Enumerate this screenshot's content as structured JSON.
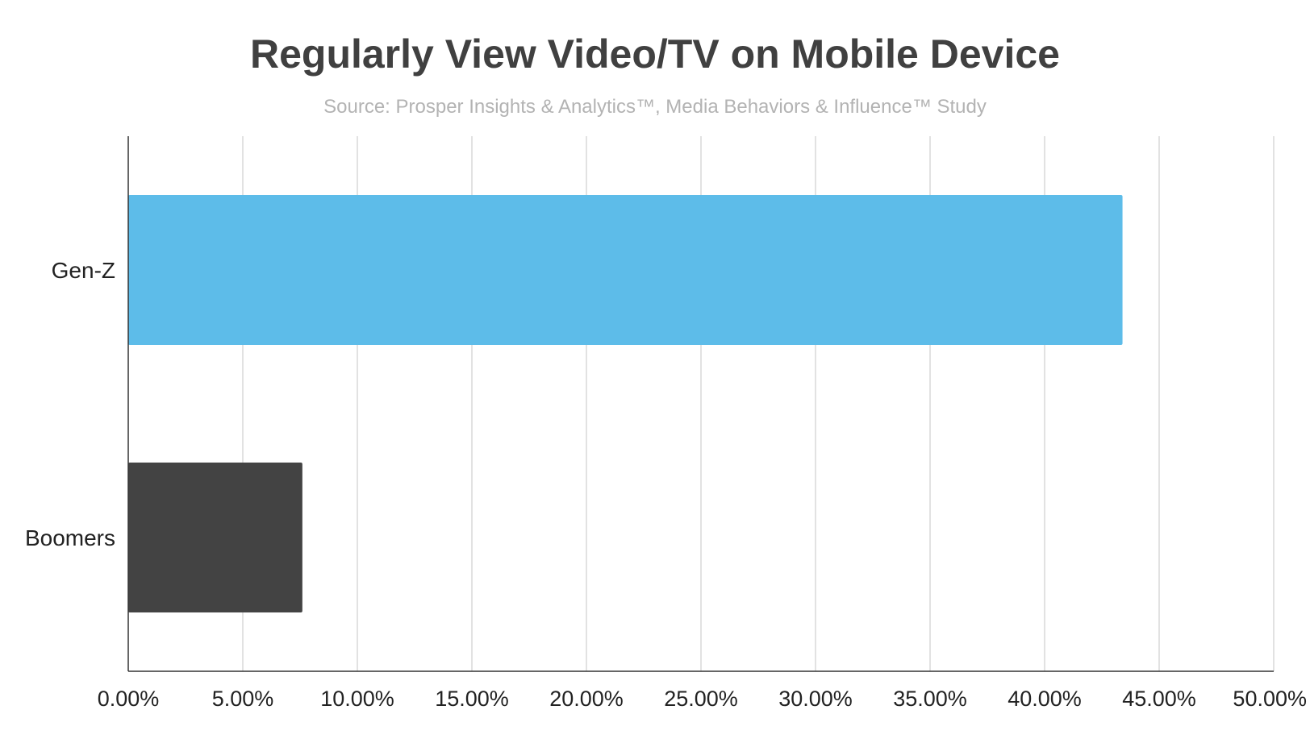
{
  "chart_data": {
    "type": "bar",
    "orientation": "horizontal",
    "title": "Regularly View Video/TV on Mobile Device",
    "subtitle": "Source: Prosper Insights & Analytics™, Media Behaviors & Influence™ Study",
    "xlabel": "",
    "ylabel": "",
    "categories": [
      "Gen-Z",
      "Boomers"
    ],
    "values": [
      43.4,
      7.6
    ],
    "bar_colors": [
      "#5dbce9",
      "#434343"
    ],
    "xlim": [
      0,
      50
    ],
    "x_ticks": [
      0,
      5,
      10,
      15,
      20,
      25,
      30,
      35,
      40,
      45,
      50
    ],
    "x_tick_labels": [
      "0.00%",
      "5.00%",
      "10.00%",
      "15.00%",
      "20.00%",
      "25.00%",
      "30.00%",
      "35.00%",
      "40.00%",
      "45.00%",
      "50.00%"
    ],
    "grid": true,
    "legend": "none"
  }
}
